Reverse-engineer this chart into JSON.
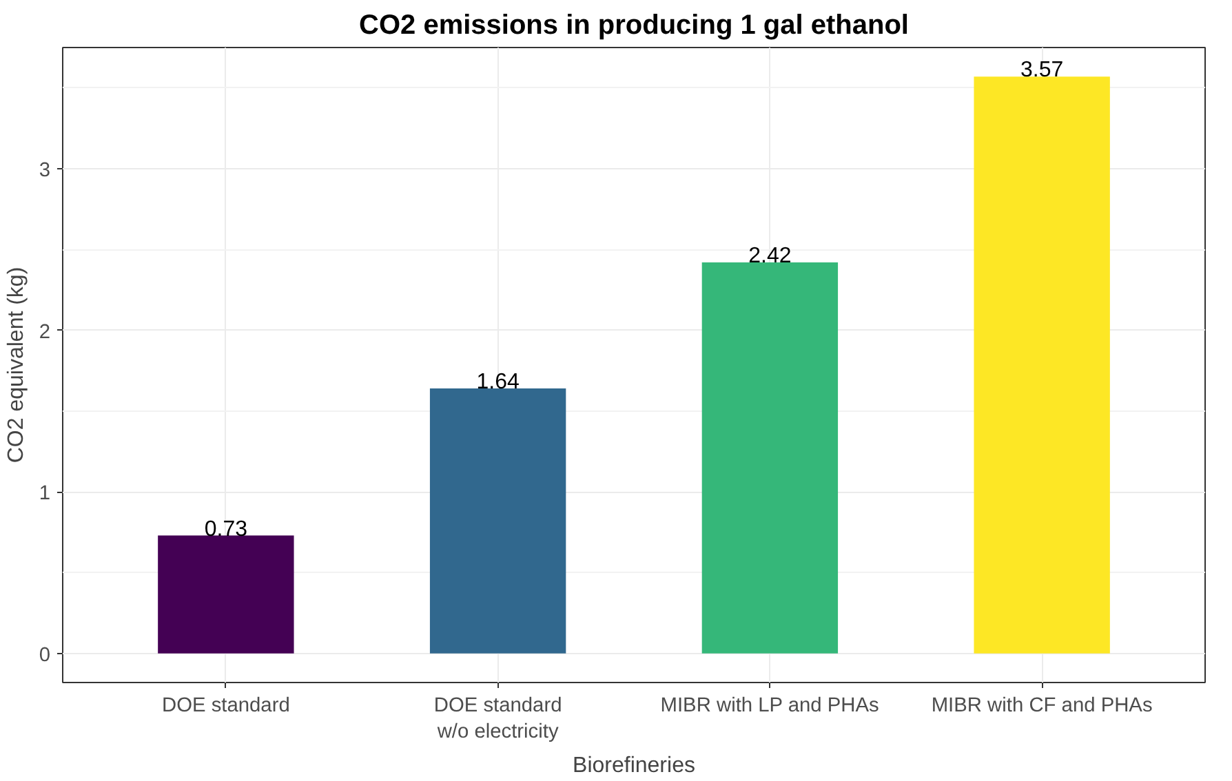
{
  "chart_data": {
    "type": "bar",
    "title": "CO2 emissions in producing 1 gal ethanol",
    "xlabel": "Biorefineries",
    "ylabel": "CO2 equivalent (kg)",
    "categories": [
      "DOE standard",
      "DOE standard\nw/o electricity",
      "MIBR with LP and PHAs",
      "MIBR with CF and PHAs"
    ],
    "values": [
      0.73,
      1.64,
      2.42,
      3.57
    ],
    "colors": [
      "#440154",
      "#31688e",
      "#35b779",
      "#fde725"
    ],
    "ylim": [
      -0.18,
      3.75
    ],
    "yticks": [
      0,
      1,
      2,
      3
    ],
    "grid": true,
    "data_labels": true
  }
}
